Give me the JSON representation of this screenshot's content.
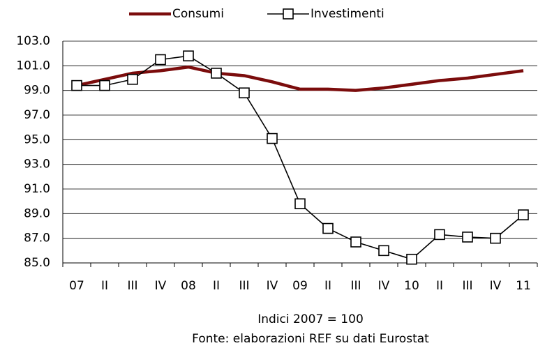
{
  "chart_data": {
    "type": "line",
    "categories": [
      "07",
      "II",
      "III",
      "IV",
      "08",
      "II",
      "III",
      "IV",
      "09",
      "II",
      "III",
      "IV",
      "10",
      "II",
      "III",
      "IV",
      "11"
    ],
    "series": [
      {
        "name": "Consumi",
        "color": "#7b0c0c",
        "marker": "none",
        "values": [
          99.4,
          99.9,
          100.4,
          100.6,
          100.9,
          100.4,
          100.2,
          99.7,
          99.1,
          99.1,
          99.0,
          99.2,
          99.5,
          99.8,
          100.0,
          100.3,
          100.6
        ]
      },
      {
        "name": "Investimenti",
        "color": "#000000",
        "marker": "square",
        "values": [
          99.4,
          99.4,
          99.9,
          101.5,
          101.8,
          100.4,
          98.8,
          95.1,
          89.8,
          87.8,
          86.7,
          86.0,
          85.3,
          87.3,
          87.1,
          87.0,
          88.9
        ]
      }
    ],
    "ylim": [
      85,
      103
    ],
    "yticks": [
      {
        "value": 85,
        "label": "85.0"
      },
      {
        "value": 87,
        "label": "87.0"
      },
      {
        "value": 89,
        "label": "89.0"
      },
      {
        "value": 91,
        "label": "91.0"
      },
      {
        "value": 93,
        "label": "93.0"
      },
      {
        "value": 95,
        "label": "95.0"
      },
      {
        "value": 97,
        "label": "97.0"
      },
      {
        "value": 99,
        "label": "99.0"
      },
      {
        "value": 101,
        "label": "101.0"
      },
      {
        "value": 103,
        "label": "103.0"
      }
    ],
    "grid": true,
    "legend": "top",
    "notes": [
      "Indici 2007 = 100",
      "Fonte: elaborazioni REF su dati Eurostat"
    ]
  }
}
